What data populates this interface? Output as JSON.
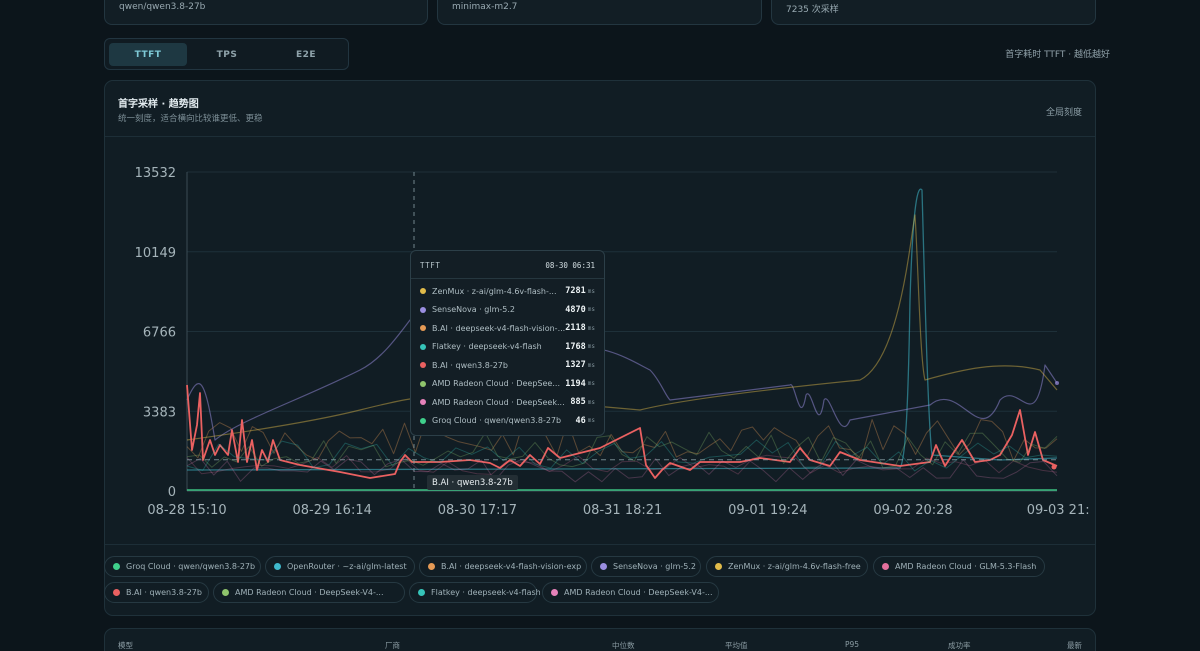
{
  "summary_cards": [
    {
      "value": "qwen/qwen3.8-27b"
    },
    {
      "value": "minimax-m2.7"
    },
    {
      "value": "7235 次采样"
    }
  ],
  "tabs": [
    {
      "label": "TTFT",
      "active": true
    },
    {
      "label": "TPS",
      "active": false
    },
    {
      "label": "E2E",
      "active": false
    }
  ],
  "metric_note": "首字耗时 TTFT · 越低越好",
  "panel": {
    "title": "首字采样 · 趋势图",
    "subtitle": "统一刻度，适合横向比较谁更低、更稳",
    "scale_label": "全局刻度"
  },
  "chart_data": {
    "type": "line",
    "y_ticks": [
      "13532",
      "10149",
      "6766",
      "3383",
      "0"
    ],
    "ylim": [
      0,
      13532
    ],
    "x_ticks": [
      "08-28 15:10",
      "08-29 16:14",
      "08-30 17:17",
      "08-31 18:21",
      "09-01 19:24",
      "09-02 20:28",
      "09-03 21:"
    ],
    "grid": true,
    "hover_time": "08-30 06:31",
    "reference_line_value": 1327,
    "series": [
      {
        "name": "Groq Cloud · qwen/qwen3.8-27b",
        "color": "#3fd08b"
      },
      {
        "name": "OpenRouter · ~z-ai/glm-latest",
        "color": "#3fb9cc"
      },
      {
        "name": "B.AI · deepseek-v4-flash-vision-exp",
        "color": "#e59a55"
      },
      {
        "name": "SenseNova · glm-5.2",
        "color": "#9a8ee0"
      },
      {
        "name": "ZenMux · z-ai/glm-4.6v-flash-free",
        "color": "#e1bb4a"
      },
      {
        "name": "AMD Radeon Cloud · GLM-5.3-Flash",
        "color": "#e36f9c"
      },
      {
        "name": "B.AI · qwen3.8-27b",
        "color": "#ea6161"
      },
      {
        "name": "AMD Radeon Cloud · DeepSeek-V4-...",
        "color": "#8fc46c"
      },
      {
        "name": "Flatkey · deepseek-v4-flash",
        "color": "#36c4b9"
      },
      {
        "name": "AMD Radeon Cloud · DeepSeek-V4-...",
        "color": "#e682ba"
      }
    ]
  },
  "tooltip": {
    "title": "TTFT",
    "time": "08-30 06:31",
    "unit": "ms",
    "rows": [
      {
        "label": "ZenMux · z-ai/glm-4.6v-flash-...",
        "value": "7281",
        "color": "#e1bb4a"
      },
      {
        "label": "SenseNova · glm-5.2",
        "value": "4870",
        "color": "#9a8ee0"
      },
      {
        "label": "B.AI · deepseek-v4-flash-vision-...",
        "value": "2118",
        "color": "#e59a55"
      },
      {
        "label": "Flatkey · deepseek-v4-flash",
        "value": "1768",
        "color": "#36c4b9"
      },
      {
        "label": "B.AI · qwen3.8-27b",
        "value": "1327",
        "color": "#ea6161"
      },
      {
        "label": "AMD Radeon Cloud · DeepSee...",
        "value": "1194",
        "color": "#8fc46c"
      },
      {
        "label": "AMD Radeon Cloud · DeepSeek...",
        "value": "885",
        "color": "#e682ba"
      },
      {
        "label": "Groq Cloud · qwen/qwen3.8-27b",
        "value": "46",
        "color": "#3fd08b"
      }
    ]
  },
  "hover_label": "B.AI · qwen3.8-27b",
  "legend": [
    {
      "label": "Groq Cloud · qwen/qwen3.8-27b",
      "color": "#3fd08b"
    },
    {
      "label": "OpenRouter · ~z-ai/glm-latest",
      "color": "#3fb9cc"
    },
    {
      "label": "B.AI · deepseek-v4-flash-vision-exp",
      "color": "#e59a55"
    },
    {
      "label": "SenseNova · glm-5.2",
      "color": "#9a8ee0"
    },
    {
      "label": "ZenMux · z-ai/glm-4.6v-flash-free",
      "color": "#e1bb4a"
    },
    {
      "label": "AMD Radeon Cloud · GLM-5.3-Flash",
      "color": "#e36f9c"
    },
    {
      "label": "B.AI · qwen3.8-27b",
      "color": "#ea6161"
    },
    {
      "label": "AMD Radeon Cloud · DeepSeek-V4-...",
      "color": "#8fc46c"
    },
    {
      "label": "Flatkey · deepseek-v4-flash",
      "color": "#36c4b9"
    },
    {
      "label": "AMD Radeon Cloud · DeepSeek-V4-...",
      "color": "#e682ba"
    }
  ],
  "table": {
    "headers": [
      "模型",
      "厂商",
      "中位数",
      "平均值",
      "P95",
      "成功率",
      "最新"
    ]
  }
}
